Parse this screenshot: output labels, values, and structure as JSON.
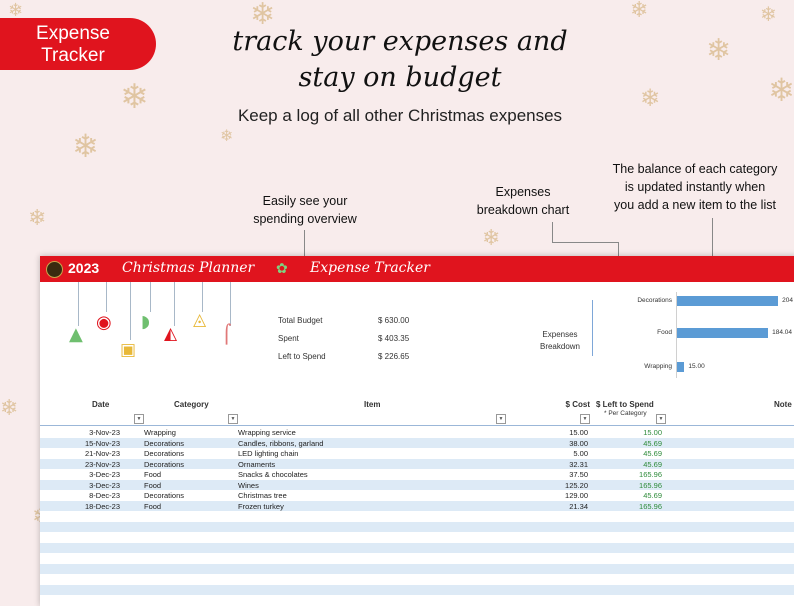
{
  "banner": {
    "line1": "Expense",
    "line2": "Tracker"
  },
  "headline": {
    "line1": "track your expenses and",
    "line2": "stay on budget"
  },
  "subtitle": "Keep a log of all other Christmas expenses",
  "callouts": {
    "overview": [
      "Easily see your",
      "spending overview"
    ],
    "chart": [
      "Expenses",
      "breakdown chart"
    ],
    "balance": [
      "The balance of each category",
      "is updated instantly when",
      "you add a new item to the list"
    ]
  },
  "sheet": {
    "year": "2023",
    "planner_title": "Christmas Planner",
    "tracker_title": "Expense Tracker",
    "summary": [
      {
        "label": "Total Budget",
        "value": "$ 630.00"
      },
      {
        "label": "Spent",
        "value": "$ 403.35"
      },
      {
        "label": "Left to Spend",
        "value": "$ 226.65"
      }
    ],
    "breakdown_label": [
      "Expenses",
      "Breakdown"
    ],
    "columns": {
      "date": "Date",
      "category": "Category",
      "item": "Item",
      "cost": "$  Cost",
      "left": "$ Left to Spend",
      "note": "Note",
      "per_category": "* Per Category"
    },
    "rows": [
      {
        "date": "3-Nov-23",
        "category": "Wrapping",
        "item": "Wrapping service",
        "cost": "15.00",
        "left": "15.00"
      },
      {
        "date": "15-Nov-23",
        "category": "Decorations",
        "item": "Candles, ribbons, garland",
        "cost": "38.00",
        "left": "45.69"
      },
      {
        "date": "21-Nov-23",
        "category": "Decorations",
        "item": "LED lighting chain",
        "cost": "5.00",
        "left": "45.69"
      },
      {
        "date": "23-Nov-23",
        "category": "Decorations",
        "item": "Ornaments",
        "cost": "32.31",
        "left": "45.69"
      },
      {
        "date": "3-Dec-23",
        "category": "Food",
        "item": "Snacks & chocolates",
        "cost": "37.50",
        "left": "165.96"
      },
      {
        "date": "3-Dec-23",
        "category": "Food",
        "item": "Wines",
        "cost": "125.20",
        "left": "165.96"
      },
      {
        "date": "8-Dec-23",
        "category": "Decorations",
        "item": "Christmas tree",
        "cost": "129.00",
        "left": "45.69"
      },
      {
        "date": "18-Dec-23",
        "category": "Food",
        "item": "Frozen turkey",
        "cost": "21.34",
        "left": "165.96"
      }
    ]
  },
  "chart_data": {
    "type": "bar",
    "orientation": "horizontal",
    "categories": [
      "Decorations",
      "Food",
      "Wrapping"
    ],
    "values": [
      204.31,
      184.04,
      15.0
    ],
    "value_labels": [
      "204",
      "184.04",
      "15.00"
    ],
    "xlim": [
      0,
      210
    ],
    "grid": false,
    "color": "#5b9bd5"
  },
  "colors": {
    "brand_red": "#e0141e",
    "row_alt": "#ddeaf6",
    "positive": "#2e8b3a"
  }
}
